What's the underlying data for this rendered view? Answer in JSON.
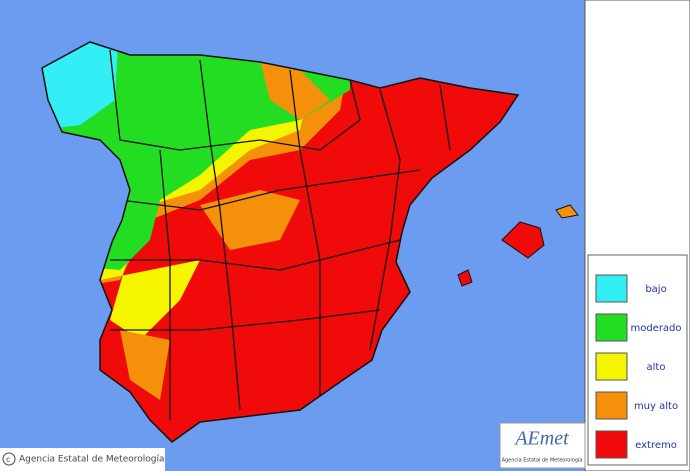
{
  "legend": {
    "items": [
      {
        "label": "bajo",
        "color": "#33eef5"
      },
      {
        "label": "moderado",
        "color": "#22dd22"
      },
      {
        "label": "alto",
        "color": "#f5f500"
      },
      {
        "label": "muy alto",
        "color": "#f5900a"
      },
      {
        "label": "extremo",
        "color": "#f00a0a"
      }
    ]
  },
  "credit": "Agencia Estatal de Meteorología",
  "logo": {
    "name": "AEmet",
    "subtitle": "Agencia Estatal de Meteorología"
  }
}
